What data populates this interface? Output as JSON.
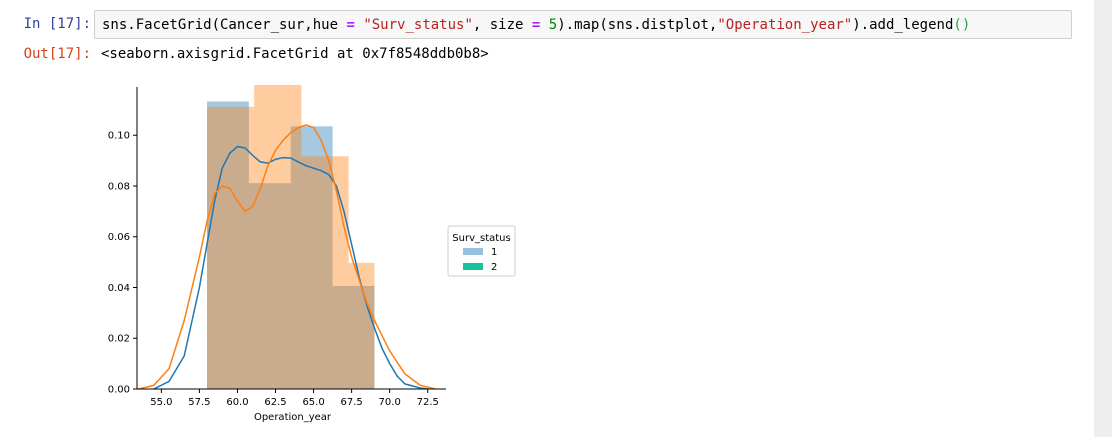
{
  "notebook": {
    "in_prompt": "In [17]:",
    "out_prompt": "Out[17]:",
    "code": {
      "prefix": "sns.FacetGrid(Cancer_sur,hue ",
      "op1": "=",
      "space1": " ",
      "str1": "\"Surv_status\"",
      "mid1": ", size ",
      "op2": "=",
      "space2": " ",
      "num1": "5",
      "mid2": ").map(sns.distplot,",
      "str2": "\"Operation_year\"",
      "mid3": ").add_legend",
      "parens": "()"
    },
    "output_text": "<seaborn.axisgrid.FacetGrid at 0x7f8548ddb0b8>"
  },
  "chart_data": {
    "type": "bar",
    "xlabel": "Operation_year",
    "xlim": [
      53.4,
      73.7
    ],
    "ylim": [
      0,
      0.119
    ],
    "xticks": [
      55.0,
      57.5,
      60.0,
      62.5,
      65.0,
      67.5,
      70.0,
      72.5
    ],
    "xtick_labels": [
      "55.0",
      "57.5",
      "60.0",
      "62.5",
      "65.0",
      "67.5",
      "70.0",
      "72.5"
    ],
    "yticks": [
      0.0,
      0.02,
      0.04,
      0.06,
      0.08,
      0.1
    ],
    "ytick_labels": [
      "0.00",
      "0.02",
      "0.04",
      "0.06",
      "0.08",
      "0.10"
    ],
    "legend": {
      "title": "Surv_status",
      "placement": "right",
      "entries": [
        "1",
        "2"
      ]
    },
    "series": [
      {
        "name": "1",
        "color": "#1f77b4",
        "legend_color": "#97bfde",
        "fill": "#1f77b4",
        "bin_edges": [
          58.0,
          60.75,
          63.5,
          66.25,
          69.0
        ],
        "bin_heights": [
          0.1133,
          0.0811,
          0.1035,
          0.0406
        ],
        "bin_labels": [],
        "kde_x": [
          54.5,
          55.5,
          56.5,
          57.5,
          58.0,
          58.5,
          59.0,
          59.5,
          60.0,
          60.5,
          61.0,
          61.5,
          62.0,
          62.5,
          63.0,
          63.5,
          64.0,
          64.5,
          65.0,
          65.5,
          66.0,
          66.5,
          67.0,
          67.5,
          68.0,
          68.5,
          69.0,
          69.5,
          70.0,
          70.5,
          71.0,
          72.0,
          72.5
        ],
        "kde_y": [
          0.0,
          0.003,
          0.013,
          0.04,
          0.057,
          0.074,
          0.087,
          0.093,
          0.0955,
          0.095,
          0.092,
          0.0895,
          0.089,
          0.0905,
          0.0912,
          0.091,
          0.0895,
          0.088,
          0.087,
          0.086,
          0.0845,
          0.08,
          0.07,
          0.057,
          0.044,
          0.033,
          0.024,
          0.016,
          0.01,
          0.005,
          0.002,
          0.0004,
          0.0
        ]
      },
      {
        "name": "2",
        "color": "#ff7f0e",
        "legend_color": "#17c39a",
        "fill": "#ff7f0e",
        "bin_edges": [
          58.0,
          61.1,
          64.2,
          67.3,
          69.0
        ],
        "bin_heights": [
          0.1112,
          0.1198,
          0.0917,
          0.0497
        ],
        "bin_labels": [],
        "kde_x": [
          53.5,
          54.5,
          55.5,
          56.5,
          57.5,
          58.0,
          58.5,
          59.0,
          59.5,
          60.0,
          60.5,
          61.0,
          61.5,
          62.0,
          62.5,
          63.0,
          63.5,
          64.0,
          64.5,
          65.0,
          65.5,
          66.0,
          66.5,
          67.0,
          67.5,
          68.0,
          68.5,
          69.0,
          69.5,
          70.0,
          71.0,
          72.0,
          73.0
        ],
        "kde_y": [
          0.0,
          0.0014,
          0.008,
          0.027,
          0.052,
          0.066,
          0.077,
          0.08,
          0.079,
          0.074,
          0.07,
          0.072,
          0.079,
          0.088,
          0.094,
          0.098,
          0.101,
          0.103,
          0.104,
          0.103,
          0.098,
          0.09,
          0.078,
          0.064,
          0.052,
          0.043,
          0.034,
          0.027,
          0.021,
          0.015,
          0.006,
          0.0015,
          0.0
        ]
      }
    ]
  }
}
